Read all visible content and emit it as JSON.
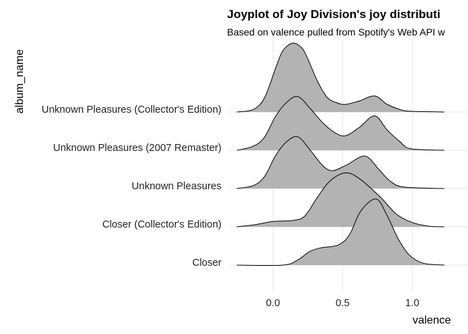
{
  "chart_data": {
    "type": "ridgeline",
    "title": "Joyplot of Joy Division's joy distributi",
    "subtitle": "Based on valence pulled from Spotify's Web API w",
    "xlabel": "valence",
    "ylabel": "album_name",
    "xlim": [
      -0.26,
      1.24
    ],
    "x_ticks": [
      "0.0",
      "0.5",
      "1.0"
    ],
    "x_tick_values": [
      0,
      0.5,
      1.0
    ],
    "grid": true,
    "fill_color": "#B3B3B3",
    "line_color": "#000000",
    "categories": [
      "Closer",
      "Closer (Collector's Edition)",
      "Unknown Pleasures",
      "Unknown Pleasures (2007 Remaster)",
      "Unknown Pleasures (Collector's Edition)"
    ],
    "series": [
      {
        "name": "Closer",
        "points": [
          [
            -0.26,
            0
          ],
          [
            0.07,
            0
          ],
          [
            0.18,
            0.14
          ],
          [
            0.26,
            0.35
          ],
          [
            0.34,
            0.45
          ],
          [
            0.47,
            0.53
          ],
          [
            0.55,
            0.8
          ],
          [
            0.63,
            1.41
          ],
          [
            0.74,
            1.73
          ],
          [
            0.82,
            1.29
          ],
          [
            0.9,
            0.68
          ],
          [
            0.98,
            0.26
          ],
          [
            1.08,
            0.05
          ],
          [
            1.23,
            0
          ]
        ]
      },
      {
        "name": "Closer (Collector's Edition)",
        "points": [
          [
            -0.26,
            0
          ],
          [
            -0.14,
            0.05
          ],
          [
            0.0,
            0.14
          ],
          [
            0.15,
            0.17
          ],
          [
            0.23,
            0.29
          ],
          [
            0.32,
            0.78
          ],
          [
            0.41,
            1.2
          ],
          [
            0.52,
            1.41
          ],
          [
            0.62,
            1.26
          ],
          [
            0.77,
            0.78
          ],
          [
            0.88,
            0.35
          ],
          [
            0.98,
            0.14
          ],
          [
            1.11,
            0.02
          ],
          [
            1.23,
            0
          ]
        ]
      },
      {
        "name": "Unknown Pleasures",
        "points": [
          [
            -0.26,
            0
          ],
          [
            -0.14,
            0.08
          ],
          [
            -0.06,
            0.32
          ],
          [
            0.02,
            0.87
          ],
          [
            0.1,
            1.23
          ],
          [
            0.18,
            1.35
          ],
          [
            0.27,
            0.99
          ],
          [
            0.36,
            0.59
          ],
          [
            0.43,
            0.47
          ],
          [
            0.53,
            0.62
          ],
          [
            0.66,
            0.85
          ],
          [
            0.76,
            0.5
          ],
          [
            0.84,
            0.2
          ],
          [
            0.94,
            0.04
          ],
          [
            1.23,
            0
          ]
        ]
      },
      {
        "name": "Unknown Pleasures (2007 Remaster)",
        "points": [
          [
            -0.26,
            0
          ],
          [
            -0.14,
            0.11
          ],
          [
            -0.06,
            0.35
          ],
          [
            0.02,
            0.9
          ],
          [
            0.1,
            1.26
          ],
          [
            0.18,
            1.4
          ],
          [
            0.27,
            1.08
          ],
          [
            0.36,
            0.71
          ],
          [
            0.44,
            0.47
          ],
          [
            0.52,
            0.38
          ],
          [
            0.62,
            0.6
          ],
          [
            0.73,
            0.9
          ],
          [
            0.82,
            0.53
          ],
          [
            0.91,
            0.23
          ],
          [
            0.99,
            0.04
          ],
          [
            1.23,
            0
          ]
        ]
      },
      {
        "name": "Unknown Pleasures (Collector's Edition)",
        "points": [
          [
            -0.26,
            0
          ],
          [
            -0.14,
            0.07
          ],
          [
            -0.06,
            0.38
          ],
          [
            0.02,
            1.16
          ],
          [
            0.07,
            1.6
          ],
          [
            0.14,
            1.8
          ],
          [
            0.2,
            1.7
          ],
          [
            0.24,
            1.47
          ],
          [
            0.32,
            0.8
          ],
          [
            0.39,
            0.38
          ],
          [
            0.46,
            0.24
          ],
          [
            0.52,
            0.2
          ],
          [
            0.62,
            0.29
          ],
          [
            0.73,
            0.42
          ],
          [
            0.82,
            0.2
          ],
          [
            0.91,
            0.07
          ],
          [
            0.99,
            0.02
          ],
          [
            1.23,
            0
          ]
        ]
      }
    ]
  }
}
